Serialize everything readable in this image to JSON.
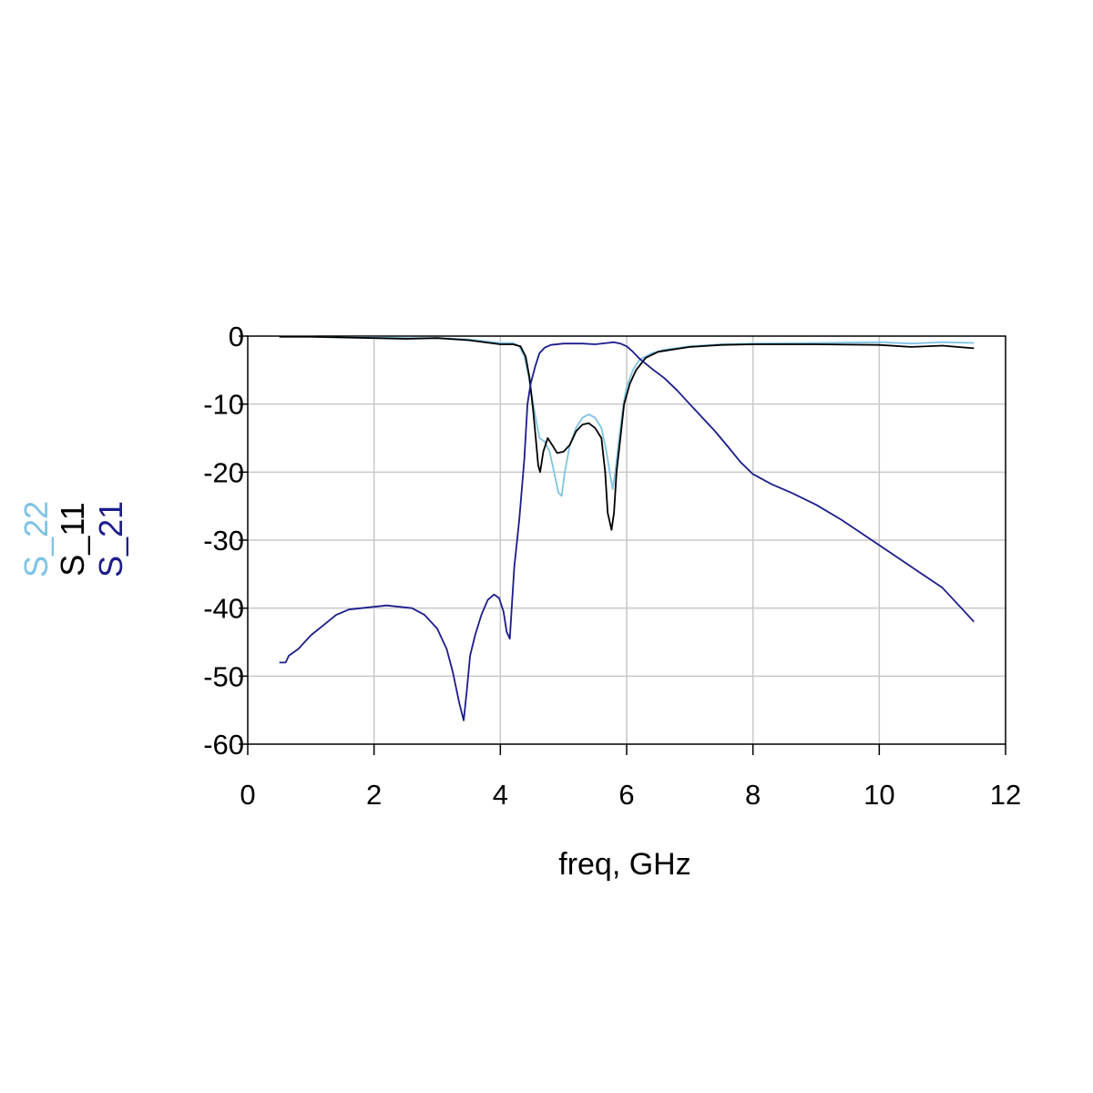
{
  "chart_data": {
    "type": "line",
    "title": "",
    "xlabel": "freq, GHz",
    "ylabel": "",
    "xlim": [
      0,
      12
    ],
    "ylim": [
      -60,
      0
    ],
    "x_ticks": [
      0,
      2,
      4,
      6,
      8,
      10,
      12
    ],
    "y_ticks": [
      0,
      -10,
      -20,
      -30,
      -40,
      -50,
      -60
    ],
    "x_tick_labels": [
      "0",
      "2",
      "4",
      "6",
      "8",
      "10",
      "12"
    ],
    "y_tick_labels": [
      "0",
      "-10",
      "-20",
      "-30",
      "-40",
      "-50",
      "-60"
    ],
    "grid": true,
    "legend_placement": "left, vertical",
    "series": [
      {
        "name": "S_22",
        "color": "#7ec3e4",
        "points": [
          [
            0.5,
            -0.1
          ],
          [
            1.0,
            -0.1
          ],
          [
            1.5,
            -0.2
          ],
          [
            2.0,
            -0.2
          ],
          [
            2.5,
            -0.3
          ],
          [
            3.0,
            -0.3
          ],
          [
            3.5,
            -0.5
          ],
          [
            4.0,
            -1.0
          ],
          [
            4.2,
            -1.0
          ],
          [
            4.3,
            -1.5
          ],
          [
            4.38,
            -3.0
          ],
          [
            4.45,
            -6.0
          ],
          [
            4.52,
            -10.0
          ],
          [
            4.58,
            -13.0
          ],
          [
            4.62,
            -15.0
          ],
          [
            4.7,
            -15.5
          ],
          [
            4.78,
            -17.0
          ],
          [
            4.85,
            -20.0
          ],
          [
            4.92,
            -23.0
          ],
          [
            4.97,
            -23.5
          ],
          [
            5.02,
            -20.0
          ],
          [
            5.1,
            -16.0
          ],
          [
            5.2,
            -13.5
          ],
          [
            5.3,
            -12.0
          ],
          [
            5.4,
            -11.5
          ],
          [
            5.5,
            -12.0
          ],
          [
            5.6,
            -13.5
          ],
          [
            5.68,
            -17.0
          ],
          [
            5.74,
            -20.5
          ],
          [
            5.78,
            -22.5
          ],
          [
            5.82,
            -20.0
          ],
          [
            5.88,
            -15.0
          ],
          [
            5.95,
            -10.0
          ],
          [
            6.0,
            -7.5
          ],
          [
            6.1,
            -5.0
          ],
          [
            6.2,
            -3.5
          ],
          [
            6.4,
            -2.5
          ],
          [
            6.6,
            -2.0
          ],
          [
            7.0,
            -1.5
          ],
          [
            7.5,
            -1.2
          ],
          [
            8.0,
            -1.1
          ],
          [
            9.0,
            -1.0
          ],
          [
            10.0,
            -0.9
          ],
          [
            10.5,
            -1.1
          ],
          [
            11.0,
            -0.9
          ],
          [
            11.5,
            -1.0
          ]
        ]
      },
      {
        "name": "S_11",
        "color": "#000000",
        "points": [
          [
            0.5,
            -0.1
          ],
          [
            1.0,
            -0.1
          ],
          [
            1.5,
            -0.2
          ],
          [
            2.0,
            -0.3
          ],
          [
            2.5,
            -0.4
          ],
          [
            3.0,
            -0.3
          ],
          [
            3.5,
            -0.6
          ],
          [
            4.0,
            -1.2
          ],
          [
            4.2,
            -1.2
          ],
          [
            4.32,
            -1.5
          ],
          [
            4.4,
            -3.0
          ],
          [
            4.46,
            -6.0
          ],
          [
            4.52,
            -11.0
          ],
          [
            4.56,
            -15.0
          ],
          [
            4.6,
            -19.0
          ],
          [
            4.63,
            -20.0
          ],
          [
            4.68,
            -17.0
          ],
          [
            4.75,
            -15.0
          ],
          [
            4.82,
            -16.0
          ],
          [
            4.9,
            -17.2
          ],
          [
            5.0,
            -17.0
          ],
          [
            5.1,
            -16.0
          ],
          [
            5.2,
            -14.0
          ],
          [
            5.3,
            -13.0
          ],
          [
            5.4,
            -12.8
          ],
          [
            5.5,
            -13.5
          ],
          [
            5.6,
            -15.0
          ],
          [
            5.66,
            -20.0
          ],
          [
            5.7,
            -26.0
          ],
          [
            5.76,
            -28.5
          ],
          [
            5.8,
            -26.0
          ],
          [
            5.84,
            -20.0
          ],
          [
            5.9,
            -15.0
          ],
          [
            5.96,
            -10.0
          ],
          [
            6.05,
            -7.0
          ],
          [
            6.15,
            -5.0
          ],
          [
            6.3,
            -3.2
          ],
          [
            6.5,
            -2.3
          ],
          [
            7.0,
            -1.6
          ],
          [
            7.5,
            -1.3
          ],
          [
            8.0,
            -1.2
          ],
          [
            9.0,
            -1.2
          ],
          [
            10.0,
            -1.3
          ],
          [
            10.5,
            -1.6
          ],
          [
            11.0,
            -1.4
          ],
          [
            11.5,
            -1.8
          ]
        ]
      },
      {
        "name": "S_21",
        "color": "#1c1c8c",
        "points": [
          [
            0.5,
            -48.0
          ],
          [
            0.6,
            -48.0
          ],
          [
            0.65,
            -47.0
          ],
          [
            0.8,
            -46.0
          ],
          [
            1.0,
            -44.0
          ],
          [
            1.2,
            -42.5
          ],
          [
            1.4,
            -41.0
          ],
          [
            1.6,
            -40.2
          ],
          [
            1.8,
            -40.0
          ],
          [
            2.0,
            -39.8
          ],
          [
            2.2,
            -39.6
          ],
          [
            2.4,
            -39.8
          ],
          [
            2.6,
            -40.0
          ],
          [
            2.8,
            -41.0
          ],
          [
            3.0,
            -43.0
          ],
          [
            3.15,
            -46.0
          ],
          [
            3.25,
            -49.5
          ],
          [
            3.35,
            -54.0
          ],
          [
            3.42,
            -56.5
          ],
          [
            3.47,
            -52.0
          ],
          [
            3.52,
            -47.0
          ],
          [
            3.6,
            -44.0
          ],
          [
            3.7,
            -41.0
          ],
          [
            3.8,
            -38.8
          ],
          [
            3.9,
            -38.0
          ],
          [
            3.98,
            -38.5
          ],
          [
            4.05,
            -40.5
          ],
          [
            4.1,
            -43.5
          ],
          [
            4.15,
            -44.5
          ],
          [
            4.18,
            -40.0
          ],
          [
            4.22,
            -34.0
          ],
          [
            4.3,
            -27.0
          ],
          [
            4.38,
            -18.0
          ],
          [
            4.43,
            -10.0
          ],
          [
            4.48,
            -7.0
          ],
          [
            4.55,
            -4.5
          ],
          [
            4.62,
            -2.5
          ],
          [
            4.7,
            -1.7
          ],
          [
            4.8,
            -1.3
          ],
          [
            5.0,
            -1.1
          ],
          [
            5.3,
            -1.1
          ],
          [
            5.5,
            -1.2
          ],
          [
            5.7,
            -1.0
          ],
          [
            5.8,
            -0.9
          ],
          [
            5.9,
            -1.1
          ],
          [
            6.0,
            -1.5
          ],
          [
            6.1,
            -2.3
          ],
          [
            6.2,
            -3.3
          ],
          [
            6.4,
            -4.8
          ],
          [
            6.6,
            -6.2
          ],
          [
            6.8,
            -8.0
          ],
          [
            7.0,
            -10.0
          ],
          [
            7.2,
            -12.0
          ],
          [
            7.4,
            -14.0
          ],
          [
            7.6,
            -16.2
          ],
          [
            7.8,
            -18.5
          ],
          [
            8.0,
            -20.3
          ],
          [
            8.3,
            -21.8
          ],
          [
            8.6,
            -23.0
          ],
          [
            9.0,
            -24.8
          ],
          [
            9.4,
            -27.0
          ],
          [
            9.8,
            -29.5
          ],
          [
            10.2,
            -32.0
          ],
          [
            10.6,
            -34.5
          ],
          [
            11.0,
            -37.0
          ],
          [
            11.3,
            -40.0
          ],
          [
            11.5,
            -42.0
          ]
        ]
      }
    ]
  }
}
